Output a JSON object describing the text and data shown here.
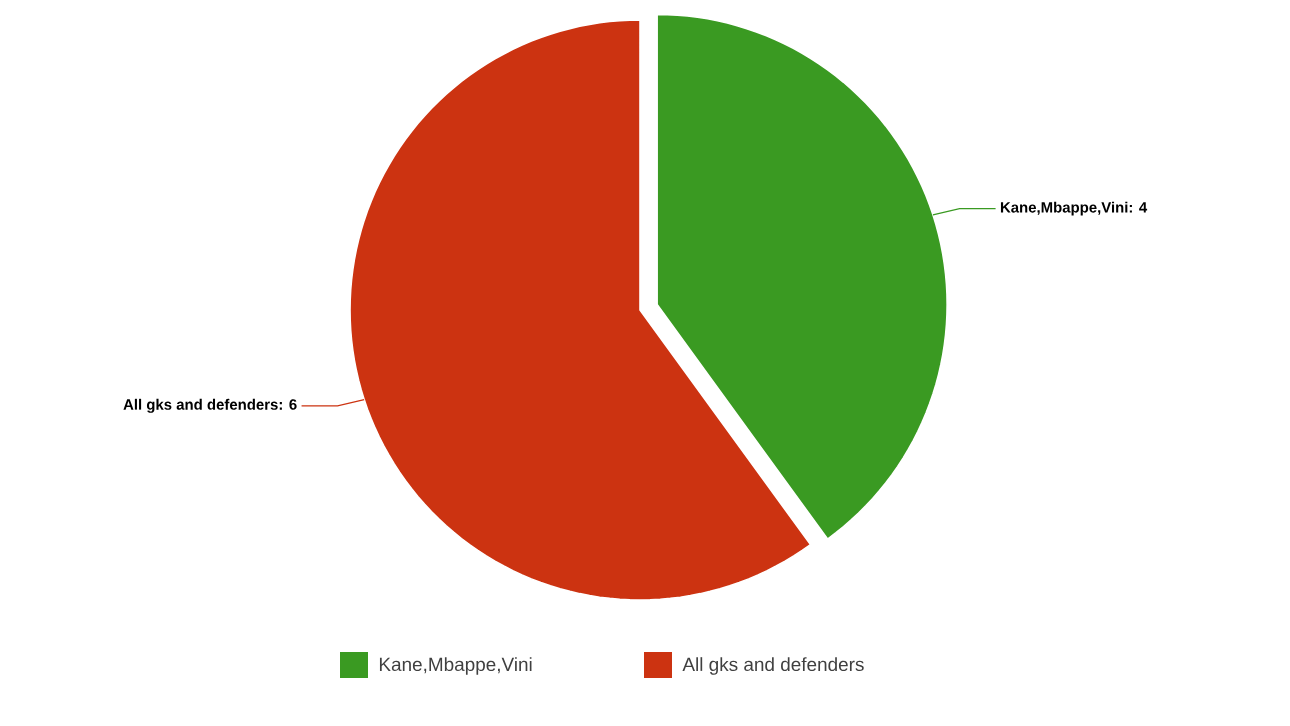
{
  "chart_data": {
    "type": "pie",
    "categories": [
      "Kane,Mbappe,Vini",
      "All gks and defenders"
    ],
    "values": [
      4,
      6
    ],
    "colors": [
      "#3a9a22",
      "#cc3311"
    ],
    "value_labels": [
      ": 4",
      ": 6"
    ],
    "legend": "bottom"
  }
}
